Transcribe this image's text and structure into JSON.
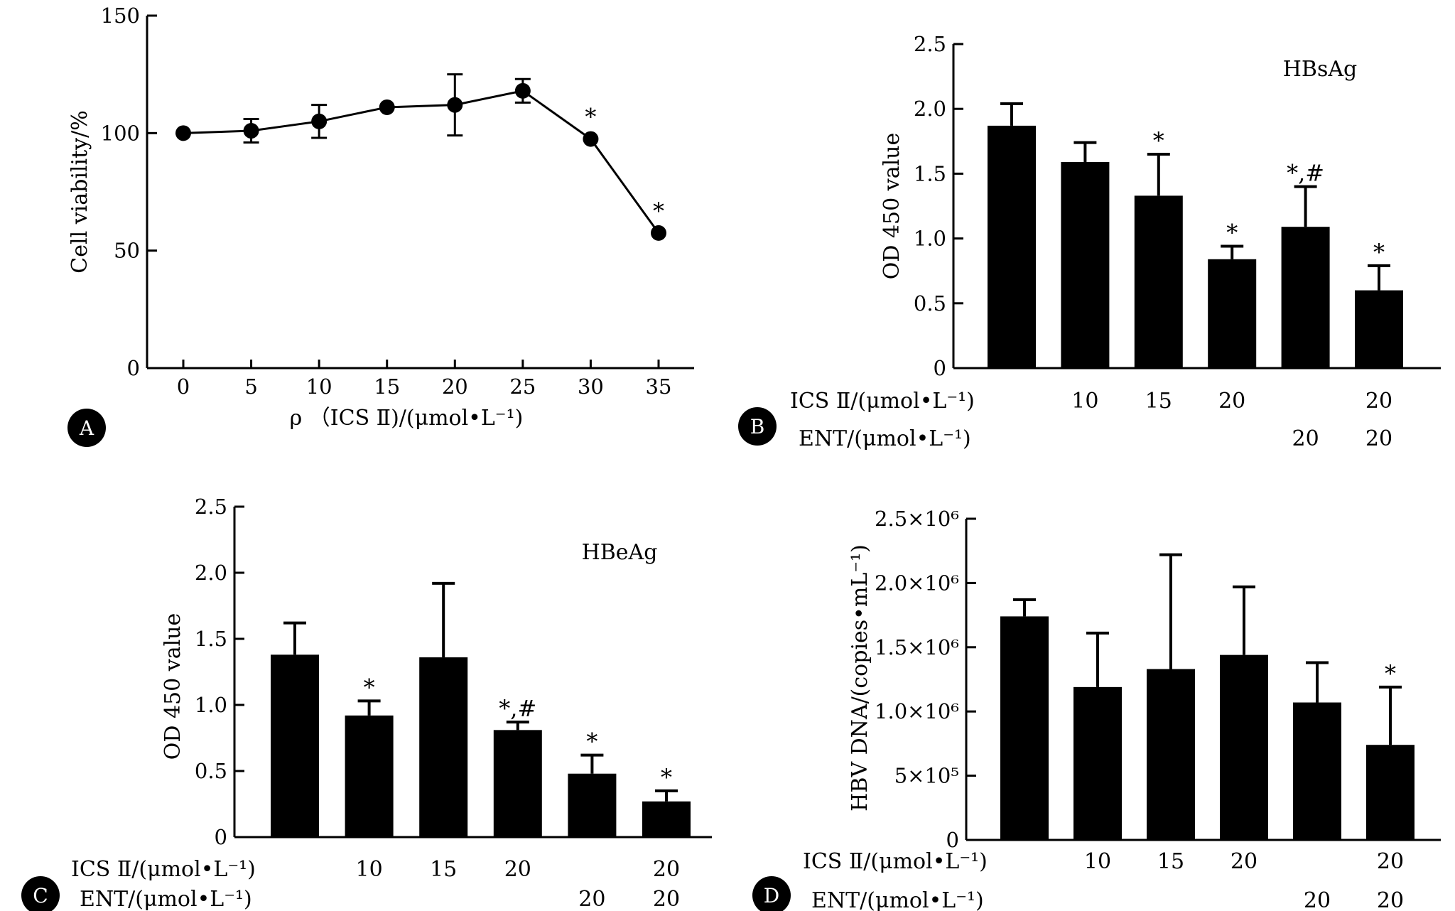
{
  "chart_data": [
    {
      "panel": "A",
      "type": "line",
      "xlabel": "ρ （ICS Ⅱ)/(μmol•L⁻¹)",
      "ylabel": "Cell viability/%",
      "ylim": [
        0,
        150
      ],
      "yticks": [
        "0",
        "50",
        "100",
        "150"
      ],
      "xticks": [
        "0",
        "5",
        "10",
        "15",
        "20",
        "25",
        "30",
        "35"
      ],
      "x": [
        0,
        5,
        10,
        15,
        20,
        25,
        30,
        35
      ],
      "values": [
        100,
        101,
        105,
        111,
        112,
        118,
        97.5,
        57.5
      ],
      "errors": [
        0,
        5,
        7,
        0,
        13,
        5,
        0,
        0
      ],
      "significance": [
        "",
        "",
        "",
        "",
        "",
        "",
        "*",
        "*"
      ],
      "grid": false
    },
    {
      "panel": "B",
      "type": "bar",
      "annotation": "HBsAg",
      "ylabel": "OD 450 value",
      "ylim": [
        0,
        2.5
      ],
      "yticks": [
        "0",
        "0.5",
        "1.0",
        "1.5",
        "2.0",
        "2.5"
      ],
      "values": [
        1.87,
        1.59,
        1.33,
        0.84,
        1.09,
        0.6
      ],
      "errors": [
        0.17,
        0.15,
        0.32,
        0.1,
        0.31,
        0.19
      ],
      "significance": [
        "",
        "",
        "*",
        "*",
        "*,#",
        "*"
      ],
      "ics_label": "ICS Ⅱ/(μmol•L⁻¹)",
      "ent_label": "ENT/(μmol•L⁻¹)",
      "ics_values": [
        "",
        "10",
        "15",
        "20",
        "",
        "20"
      ],
      "ent_values": [
        "",
        "",
        "",
        "",
        "20",
        "20"
      ],
      "grid": false
    },
    {
      "panel": "C",
      "type": "bar",
      "annotation": "HBeAg",
      "ylabel": "OD 450 value",
      "ylim": [
        0,
        2.5
      ],
      "yticks": [
        "0",
        "0.5",
        "1.0",
        "1.5",
        "2.0",
        "2.5"
      ],
      "values": [
        1.38,
        0.92,
        1.36,
        0.81,
        0.48,
        0.27
      ],
      "errors": [
        0.24,
        0.11,
        0.56,
        0.06,
        0.14,
        0.08
      ],
      "significance": [
        "",
        "*",
        "",
        "*,#",
        "*",
        "*"
      ],
      "ics_label": "ICS Ⅱ/(μmol•L⁻¹)",
      "ent_label": "ENT/(μmol•L⁻¹)",
      "ics_values": [
        "",
        "10",
        "15",
        "20",
        "",
        "20"
      ],
      "ent_values": [
        "",
        "",
        "",
        "",
        "20",
        "20"
      ],
      "grid": false
    },
    {
      "panel": "D",
      "type": "bar",
      "ylabel": "HBV DNA/(copies•mL⁻¹)",
      "ylim": [
        0,
        2.5
      ],
      "yticks": [
        "0",
        "5×10⁵",
        "1.0×10⁶",
        "1.5×10⁶",
        "2.0×10⁶",
        "2.5×10⁶"
      ],
      "values": [
        1.74,
        1.19,
        1.33,
        1.44,
        1.07,
        0.74
      ],
      "errors": [
        0.13,
        0.42,
        0.89,
        0.53,
        0.31,
        0.45
      ],
      "significance": [
        "",
        "",
        "",
        "",
        "",
        "*"
      ],
      "ics_label": "ICS Ⅱ/(μmol•L⁻¹)",
      "ent_label": "ENT/(μmol•L⁻¹)",
      "ics_values": [
        "",
        "10",
        "15",
        "20",
        "",
        "20"
      ],
      "ent_values": [
        "",
        "",
        "",
        "",
        "20",
        "20"
      ],
      "grid": false
    }
  ]
}
